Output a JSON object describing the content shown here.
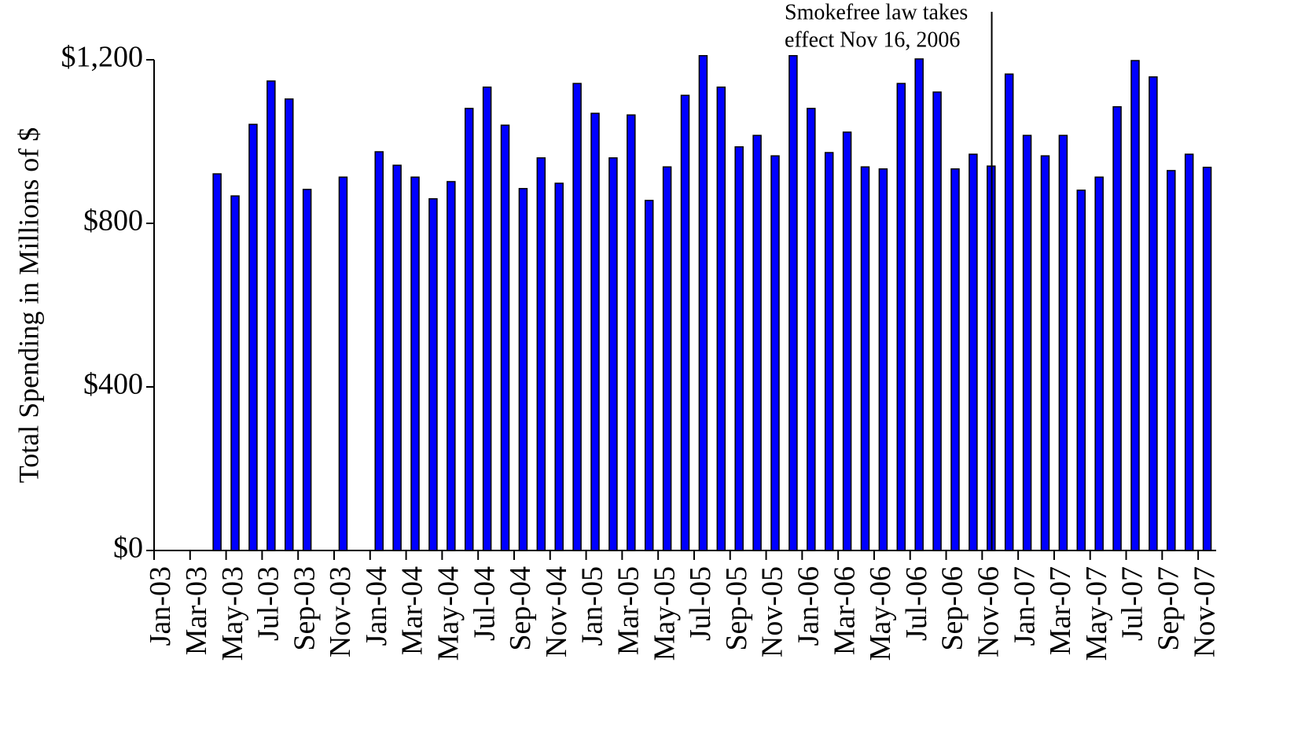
{
  "chart_data": {
    "type": "bar",
    "y_label": "Total Spending in Millions of $",
    "annotation": [
      "Smokefree law takes",
      "effect Nov 16, 2006"
    ],
    "categories": [
      "Jan-03",
      null,
      "Mar-03",
      null,
      "May-03",
      null,
      "Jul-03",
      null,
      "Sep-03",
      null,
      "Nov-03",
      null,
      "Jan-04",
      null,
      "Mar-04",
      null,
      "May-04",
      null,
      "Jul-04",
      null,
      "Sep-04",
      null,
      "Nov-04",
      null,
      "Jan-05",
      null,
      "Mar-05",
      null,
      "May-05",
      null,
      "Jul-05",
      null,
      "Sep-05",
      null,
      "Nov-05",
      null,
      "Jan-06",
      null,
      "Mar-06",
      null,
      "May-06",
      null,
      "Jul-06",
      null,
      "Sep-06",
      null,
      "Nov-06",
      null,
      "Jan-07",
      null,
      "Mar-07",
      null,
      "May-07",
      null,
      "Jul-07",
      null,
      "Sep-07",
      null,
      "Nov-07"
    ],
    "values": [
      null,
      null,
      null,
      921,
      867,
      1042,
      1148,
      1104,
      883,
      null,
      913,
      null,
      975,
      942,
      913,
      860,
      902,
      1081,
      1133,
      1040,
      885,
      960,
      898,
      1142,
      1069,
      960,
      1065,
      856,
      938,
      1113,
      1210,
      1133,
      987,
      1015,
      965,
      1210,
      1081,
      973,
      1023,
      938,
      933,
      1142,
      1202,
      1121,
      933,
      969,
      940,
      1165,
      1015,
      965,
      1015,
      881,
      913,
      1085,
      1198,
      1158,
      929,
      969,
      937
    ],
    "color": "#0000ff",
    "ylim": [
      0,
      1200
    ],
    "yticks": [
      {
        "value": 0,
        "label": "$0"
      },
      {
        "value": 400,
        "label": "$400"
      },
      {
        "value": 800,
        "label": "$800"
      },
      {
        "value": 1200,
        "label": "$1,200"
      }
    ],
    "grid": false
  }
}
